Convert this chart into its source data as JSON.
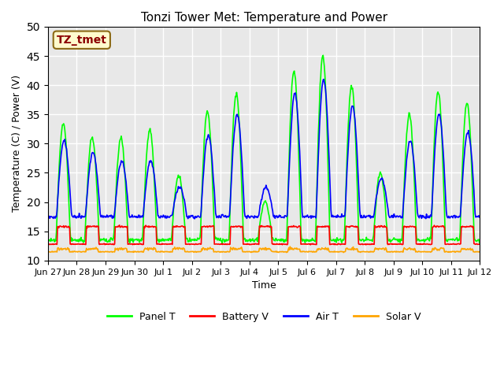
{
  "title": "Tonzi Tower Met: Temperature and Power",
  "xlabel": "Time",
  "ylabel": "Temperature (C) / Power (V)",
  "ylim": [
    10,
    50
  ],
  "yticks": [
    10,
    15,
    20,
    25,
    30,
    35,
    40,
    45,
    50
  ],
  "xtick_labels": [
    "Jun 27",
    "Jun 28",
    "Jun 29",
    "Jun 30",
    "Jul 1",
    "Jul 2",
    "Jul 3",
    "Jul 4",
    "Jul 5",
    "Jul 6",
    "Jul 7",
    "Jul 8",
    "Jul 9",
    "Jul 10",
    "Jul 11",
    "Jul 12"
  ],
  "annotation_text": "TZ_tmet",
  "annotation_color": "#8B0000",
  "annotation_bg": "#FFFACD",
  "annotation_edge": "#8B6914",
  "panel_t_color": "#00FF00",
  "battery_v_color": "#FF0000",
  "air_t_color": "#0000FF",
  "solar_v_color": "#FFA500",
  "bg_color": "#E8E8E8",
  "grid_color": "#FFFFFF",
  "legend_labels": [
    "Panel T",
    "Battery V",
    "Air T",
    "Solar V"
  ],
  "n_days": 15,
  "samples_per_day": 48
}
